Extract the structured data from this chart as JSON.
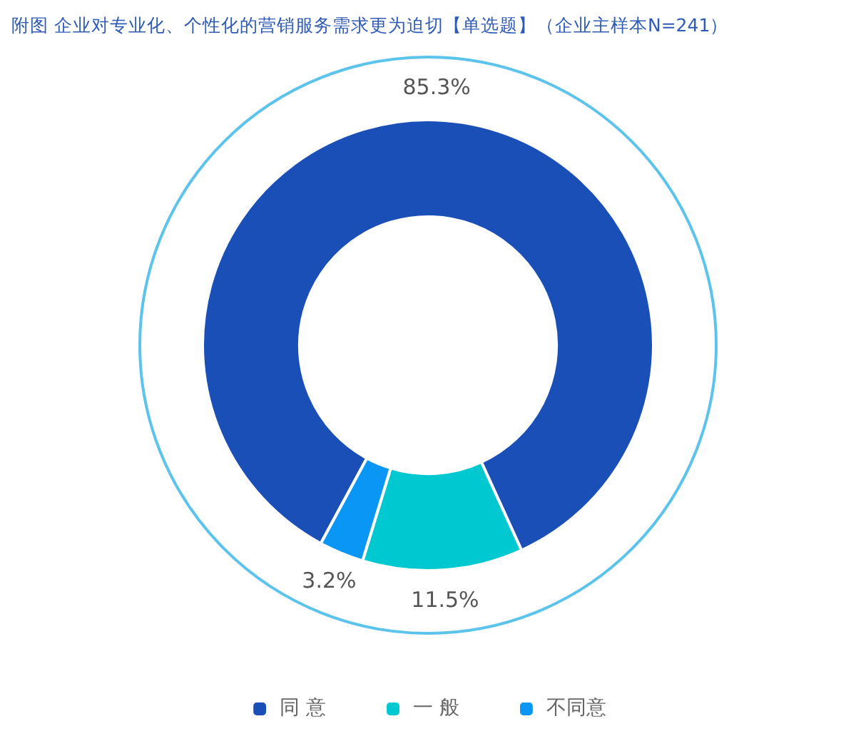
{
  "chart_data": {
    "type": "donut",
    "title": "附图 企业对专业化、个性化的营销服务需求更为迫切【单选题】（企业主样本N=241）",
    "categories": [
      "同 意",
      "一 般",
      "不同意"
    ],
    "values": [
      85.3,
      11.5,
      3.2
    ],
    "colors": [
      "#1a4fb8",
      "#00c8d0",
      "#0a96f5"
    ],
    "value_labels": [
      "85.3%",
      "11.5%",
      "3.2%"
    ],
    "legend": "bottom"
  }
}
